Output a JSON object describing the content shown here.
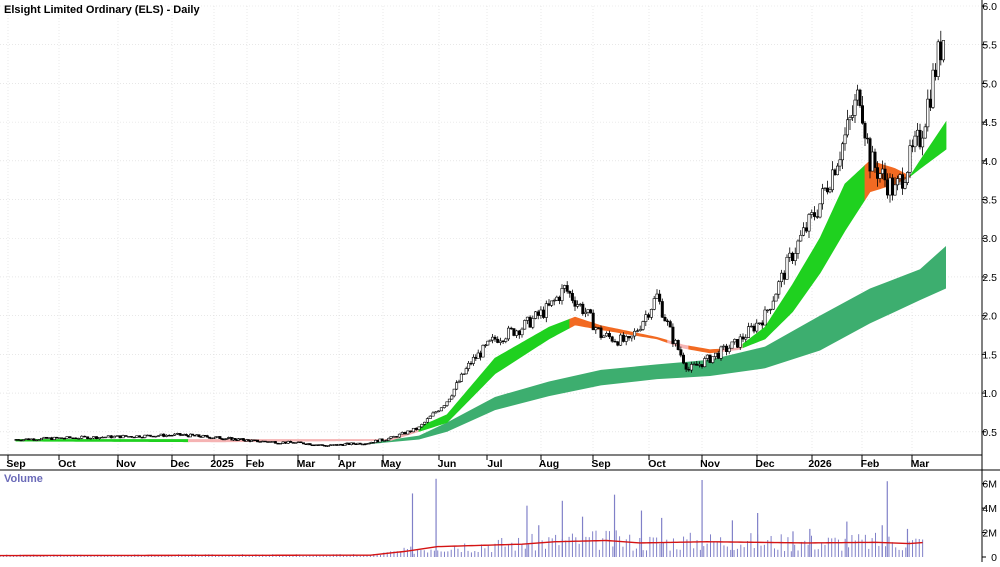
{
  "title": "Elsight Limited Ordinary (ELS) - Daily",
  "colors": {
    "background": "#ffffff",
    "grid": "#d9d9d9",
    "candle": "#000000",
    "short_band_up": "#1fd11f",
    "short_band_down": "#f26a22",
    "short_band_neutral": "#f5b3b3",
    "long_band": "#3dae6f",
    "volume_bar": "#8080c8",
    "volume_avg": "#d41414"
  },
  "chart_data": {
    "type": "candlestick",
    "price_panel": {
      "yaxis_ticks": [
        "6.0",
        "5.5",
        "5.0",
        "4.5",
        "4.0",
        "3.5",
        "3.0",
        "2.5",
        "2.0",
        "1.5",
        "1.0",
        "0.5"
      ],
      "ylim": [
        0.2,
        6.0
      ],
      "grid": true,
      "months": [
        "Sep",
        "Oct",
        "Nov",
        "Dec",
        "2025",
        "Feb",
        "Mar",
        "Apr",
        "May",
        "Jun",
        "Jul",
        "Aug",
        "Sep",
        "Oct",
        "Nov",
        "Dec",
        "2026",
        "Feb",
        "Mar"
      ],
      "close_path": [
        [
          0,
          0.4
        ],
        [
          1,
          0.42
        ],
        [
          2,
          0.44
        ],
        [
          3,
          0.46
        ],
        [
          4,
          0.42
        ],
        [
          5,
          0.38
        ],
        [
          6,
          0.35
        ],
        [
          6.5,
          0.32
        ],
        [
          7,
          0.34
        ],
        [
          7.5,
          0.36
        ],
        [
          8,
          0.42
        ],
        [
          8.5,
          0.55
        ],
        [
          9,
          0.9
        ],
        [
          9.5,
          1.4
        ],
        [
          10,
          1.7
        ],
        [
          10.5,
          1.85
        ],
        [
          11,
          2.1
        ],
        [
          11.3,
          2.35
        ],
        [
          11.7,
          2.05
        ],
        [
          12,
          1.75
        ],
        [
          12.5,
          1.65
        ],
        [
          13,
          2.25
        ],
        [
          13.3,
          1.7
        ],
        [
          13.6,
          1.3
        ],
        [
          14,
          1.45
        ],
        [
          14.5,
          1.65
        ],
        [
          15,
          2.0
        ],
        [
          15.5,
          2.8
        ],
        [
          16,
          3.45
        ],
        [
          16.5,
          4.3
        ],
        [
          16.8,
          4.9
        ],
        [
          17,
          4.0
        ],
        [
          17.5,
          3.6
        ],
        [
          18,
          4.3
        ],
        [
          18.3,
          5.2
        ],
        [
          18.5,
          5.75
        ]
      ],
      "short_band": [
        [
          0,
          0.4,
          0.38
        ],
        [
          4,
          0.4,
          0.37
        ],
        [
          8,
          0.4,
          0.39
        ],
        [
          9,
          0.72,
          0.62
        ],
        [
          10,
          1.45,
          1.25
        ],
        [
          11,
          1.85,
          1.7
        ],
        [
          11.5,
          1.98,
          1.88
        ],
        [
          12,
          1.87,
          1.82
        ],
        [
          13,
          1.72,
          1.7
        ],
        [
          13.5,
          1.62,
          1.58
        ],
        [
          14,
          1.56,
          1.52
        ],
        [
          14.5,
          1.58,
          1.56
        ],
        [
          15,
          1.85,
          1.7
        ],
        [
          15.5,
          2.4,
          2.05
        ],
        [
          16,
          3.0,
          2.55
        ],
        [
          16.5,
          3.7,
          3.1
        ],
        [
          17,
          4.0,
          3.6
        ],
        [
          17.5,
          3.9,
          3.7
        ],
        [
          17.8,
          3.8,
          3.8
        ],
        [
          18.5,
          4.5,
          4.15
        ]
      ],
      "short_band_trend": [
        {
          "from": 0,
          "to": 0.4,
          "trend": "up"
        },
        {
          "from": 0.4,
          "to": 1.9,
          "trend": "up"
        },
        {
          "from": 1.9,
          "to": 3.2,
          "trend": "up"
        },
        {
          "from": 3.2,
          "to": 8.5,
          "trend": "neutral"
        },
        {
          "from": 8.5,
          "to": 11.4,
          "trend": "up"
        },
        {
          "from": 11.4,
          "to": 13.2,
          "trend": "down"
        },
        {
          "from": 13.2,
          "to": 13.6,
          "trend": "neutral"
        },
        {
          "from": 13.6,
          "to": 14.2,
          "trend": "down"
        },
        {
          "from": 14.2,
          "to": 14.6,
          "trend": "neutral"
        },
        {
          "from": 14.6,
          "to": 16.9,
          "trend": "up"
        },
        {
          "from": 16.9,
          "to": 17.8,
          "trend": "down"
        },
        {
          "from": 17.8,
          "to": 18.5,
          "trend": "up"
        }
      ],
      "long_band": [
        [
          7.5,
          0.36,
          0.34
        ],
        [
          8.5,
          0.45,
          0.4
        ],
        [
          9,
          0.62,
          0.5
        ],
        [
          10,
          0.95,
          0.78
        ],
        [
          11,
          1.15,
          0.96
        ],
        [
          12,
          1.3,
          1.1
        ],
        [
          13,
          1.37,
          1.18
        ],
        [
          13.5,
          1.4,
          1.2
        ],
        [
          14,
          1.43,
          1.22
        ],
        [
          15,
          1.6,
          1.32
        ],
        [
          16,
          2.0,
          1.55
        ],
        [
          17,
          2.35,
          1.9
        ],
        [
          18,
          2.6,
          2.2
        ],
        [
          18.5,
          2.9,
          2.35
        ]
      ]
    },
    "volume_panel": {
      "label": "Volume",
      "yaxis_ticks": [
        "6M",
        "4M",
        "2M",
        "0"
      ],
      "ylim": [
        0,
        6.5
      ],
      "unit": "M",
      "spikes": [
        [
          12.25,
          5.2
        ],
        [
          12.95,
          6.4
        ],
        [
          15.65,
          4.2
        ],
        [
          16.0,
          2.6
        ],
        [
          16.7,
          4.6
        ],
        [
          17.3,
          3.3
        ],
        [
          18.25,
          5.1
        ],
        [
          19.05,
          3.8
        ],
        [
          19.65,
          3.2
        ],
        [
          20.85,
          6.3
        ],
        [
          21.75,
          3.0
        ],
        [
          22.5,
          3.6
        ],
        [
          23.55,
          2.1
        ],
        [
          24.05,
          2.3
        ],
        [
          25.15,
          2.9
        ],
        [
          26.2,
          2.6
        ],
        [
          26.35,
          6.2
        ],
        [
          26.95,
          2.3
        ]
      ],
      "average_path": [
        [
          0,
          0.12
        ],
        [
          11,
          0.15
        ],
        [
          12,
          0.45
        ],
        [
          13,
          0.85
        ],
        [
          15.5,
          1.05
        ],
        [
          16.5,
          1.25
        ],
        [
          18,
          1.35
        ],
        [
          19,
          1.15
        ],
        [
          21,
          1.25
        ],
        [
          24,
          1.15
        ],
        [
          26,
          1.2
        ],
        [
          27,
          1.1
        ],
        [
          27.5,
          1.2
        ]
      ]
    }
  }
}
